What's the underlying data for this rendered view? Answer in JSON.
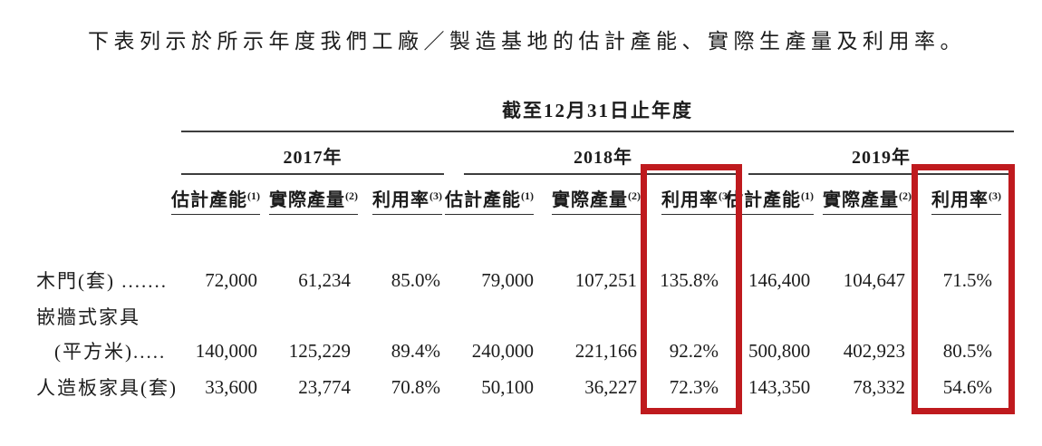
{
  "title": "下表列示於所示年度我們工廠／製造基地的估計產能、實際生產量及利用率。",
  "table": {
    "period_header": "截至12月31日止年度",
    "years": [
      "2017年",
      "2018年",
      "2019年"
    ],
    "column_headers": [
      {
        "label": "估計產能",
        "note": "(1)"
      },
      {
        "label": "實際產量",
        "note": "(2)"
      },
      {
        "label": "利用率",
        "note": "(3)"
      }
    ],
    "rows": [
      {
        "label": "木門(套) .......",
        "values": [
          "72,000",
          "61,234",
          "85.0%",
          "79,000",
          "107,251",
          "135.8%",
          "146,400",
          "104,647",
          "71.5%"
        ]
      },
      {
        "label": "嵌牆式家具"
      },
      {
        "label": "(平方米).....",
        "values": [
          "140,000",
          "125,229",
          "89.4%",
          "240,000",
          "221,166",
          "92.2%",
          "500,800",
          "402,923",
          "80.5%"
        ]
      },
      {
        "label": "人造板家具(套)",
        "values": [
          "33,600",
          "23,774",
          "70.8%",
          "50,100",
          "36,227",
          "72.3%",
          "143,350",
          "78,332",
          "54.6%"
        ]
      }
    ],
    "highlight_color": "#bf1a1e",
    "highlighted_columns": [
      "2018年 利用率(3)",
      "2019年 利用率(3)"
    ]
  }
}
